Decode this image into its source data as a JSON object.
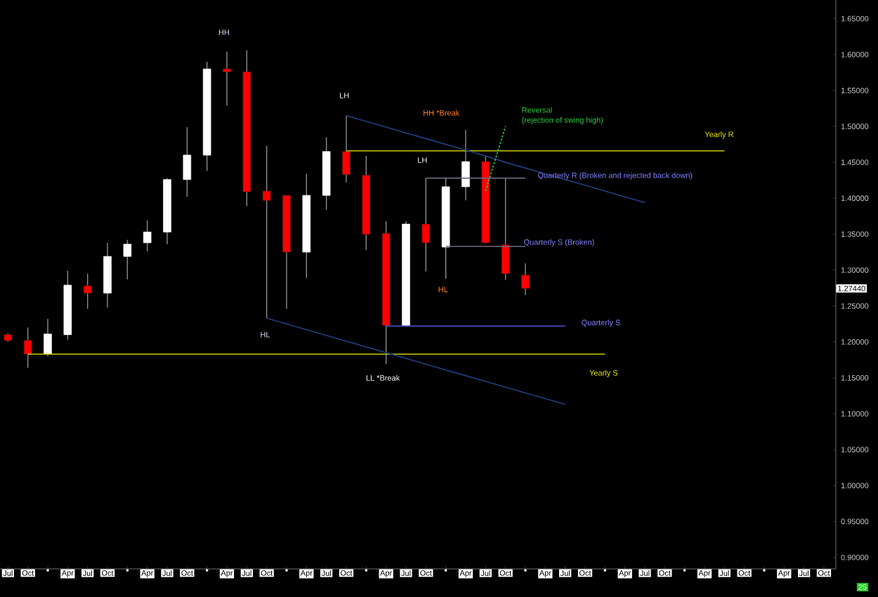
{
  "chart_data": {
    "type": "candlestick",
    "categories": [
      "Jul",
      "Oct",
      null,
      "Apr",
      "Jul",
      "Oct",
      null,
      "Apr",
      "Jul",
      "Oct",
      null,
      "Apr",
      "Jul",
      "Oct",
      null,
      "Apr",
      "Jul",
      "Oct",
      null,
      "Apr",
      "Jul",
      "Oct",
      null,
      "Apr",
      "Jul",
      "Oct",
      null,
      "Apr",
      "Jul",
      "Oct",
      null,
      "Apr",
      "Jul",
      "Oct",
      null,
      "Apr",
      "Jul",
      "Oct",
      null,
      "Apr",
      "Jul",
      "Oct"
    ],
    "ohlc": [
      [
        1.21,
        1.212,
        1.2,
        1.202
      ],
      [
        1.202,
        1.22,
        1.164,
        1.183
      ],
      [
        1.183,
        1.232,
        1.18,
        1.211
      ],
      [
        1.21,
        1.299,
        1.203,
        1.279
      ],
      [
        1.278,
        1.295,
        1.246,
        1.268
      ],
      [
        1.268,
        1.338,
        1.248,
        1.319
      ],
      [
        1.319,
        1.342,
        1.287,
        1.336
      ],
      [
        1.338,
        1.369,
        1.326,
        1.353
      ],
      [
        1.353,
        1.428,
        1.336,
        1.426
      ],
      [
        1.426,
        1.499,
        1.402,
        1.46
      ],
      [
        1.46,
        1.59,
        1.438,
        1.58
      ],
      [
        1.58,
        1.604,
        1.529,
        1.576
      ],
      [
        1.576,
        1.606,
        1.389,
        1.409
      ],
      [
        1.41,
        1.473,
        1.233,
        1.397
      ],
      [
        1.404,
        1.404,
        1.246,
        1.325
      ],
      [
        1.325,
        1.434,
        1.289,
        1.404
      ],
      [
        1.404,
        1.485,
        1.384,
        1.465
      ],
      [
        1.465,
        1.515,
        1.422,
        1.433
      ],
      [
        1.432,
        1.459,
        1.328,
        1.35
      ],
      [
        1.351,
        1.368,
        1.169,
        1.223
      ],
      [
        1.223,
        1.368,
        1.221,
        1.364
      ],
      [
        1.364,
        1.428,
        1.298,
        1.338
      ],
      [
        1.332,
        1.428,
        1.288,
        1.416
      ],
      [
        1.416,
        1.495,
        1.397,
        1.451
      ],
      [
        1.451,
        1.458,
        1.337,
        1.338
      ],
      [
        1.335,
        1.428,
        1.286,
        1.295
      ],
      [
        1.293,
        1.309,
        1.265,
        1.2744
      ],
      null,
      null,
      null,
      null,
      null,
      null,
      null,
      null,
      null,
      null,
      null,
      null,
      null,
      null,
      null
    ],
    "series": [
      {
        "type": "line",
        "color": "#c8c800",
        "values": [
          null,
          null,
          null,
          null,
          null,
          null,
          null,
          null,
          null,
          null,
          null,
          null,
          null,
          null,
          null,
          null,
          null,
          1.466,
          1.466,
          1.466,
          1.466,
          1.466,
          1.466,
          1.466,
          1.466,
          1.466,
          1.466,
          1.466,
          1.466,
          1.466,
          1.466,
          1.466,
          1.466,
          1.466,
          1.466,
          1.466,
          1.466,
          null,
          null,
          null,
          null,
          null
        ]
      },
      {
        "type": "line",
        "color": "#c8c800",
        "values": [
          null,
          1.183,
          1.183,
          1.183,
          1.183,
          1.183,
          1.183,
          1.183,
          1.183,
          1.183,
          1.183,
          1.183,
          1.183,
          1.183,
          1.183,
          1.183,
          1.183,
          1.183,
          1.183,
          1.183,
          1.183,
          1.183,
          1.183,
          1.183,
          1.183,
          1.183,
          1.183,
          1.183,
          1.183,
          1.183,
          1.183,
          null,
          null,
          null,
          null,
          null,
          null,
          null,
          null,
          null,
          null,
          null
        ]
      },
      {
        "type": "line",
        "color": "#6a6a80",
        "values": [
          null,
          null,
          null,
          null,
          null,
          null,
          null,
          null,
          null,
          null,
          null,
          null,
          null,
          null,
          null,
          null,
          null,
          null,
          null,
          null,
          null,
          1.428,
          1.428,
          1.428,
          1.428,
          1.428,
          1.428,
          null,
          null,
          null,
          null,
          null,
          null,
          null,
          null,
          null,
          null,
          null,
          null,
          null,
          null,
          null
        ]
      },
      {
        "type": "line",
        "color": "#6a6a80",
        "values": [
          null,
          null,
          null,
          null,
          null,
          null,
          null,
          null,
          null,
          null,
          null,
          null,
          null,
          null,
          null,
          null,
          null,
          null,
          null,
          null,
          null,
          null,
          1.333,
          1.333,
          1.333,
          1.333,
          1.333,
          null,
          null,
          null,
          null,
          null,
          null,
          null,
          null,
          null,
          null,
          null,
          null,
          null,
          null,
          null
        ]
      },
      {
        "type": "line",
        "color": "#5050d0",
        "values": [
          null,
          null,
          null,
          null,
          null,
          null,
          null,
          null,
          null,
          null,
          null,
          null,
          null,
          null,
          null,
          null,
          null,
          null,
          null,
          1.222,
          1.222,
          1.222,
          1.222,
          1.222,
          1.222,
          1.222,
          1.222,
          1.222,
          1.222,
          null,
          null,
          null,
          null,
          null,
          null,
          null,
          null,
          null,
          null,
          null,
          null,
          null
        ]
      },
      {
        "type": "line",
        "color": "#1f3f7f",
        "values": [
          null,
          null,
          null,
          null,
          null,
          null,
          null,
          null,
          null,
          null,
          null,
          null,
          null,
          null,
          null,
          null,
          null,
          1.515,
          1.507,
          1.499,
          1.491,
          1.483,
          1.475,
          1.467,
          1.459,
          1.45,
          1.442,
          1.434,
          1.426,
          1.418,
          1.41,
          1.402,
          1.394,
          null,
          null,
          null,
          null,
          null,
          null,
          null,
          null,
          null
        ]
      },
      {
        "type": "line",
        "color": "#2ecc40",
        "line_style": "dashed",
        "values": [
          null,
          null,
          null,
          null,
          null,
          null,
          null,
          null,
          null,
          null,
          null,
          null,
          null,
          null,
          null,
          null,
          null,
          null,
          null,
          null,
          null,
          null,
          null,
          null,
          1.41,
          1.5,
          null,
          null,
          null,
          null,
          null,
          null,
          null,
          null,
          null,
          null,
          null,
          null,
          null,
          null,
          null,
          null
        ]
      },
      {
        "type": "line",
        "color": "#1f3f7f",
        "values": [
          null,
          null,
          null,
          null,
          null,
          null,
          null,
          null,
          null,
          null,
          null,
          null,
          null,
          1.233,
          1.225,
          1.217,
          1.209,
          1.201,
          1.193,
          1.185,
          1.177,
          1.169,
          1.161,
          1.153,
          1.145,
          1.137,
          1.129,
          1.121,
          1.113,
          null,
          null,
          null,
          null,
          null,
          null,
          null,
          null,
          null,
          null,
          null,
          null,
          null
        ]
      }
    ],
    "ylim": [
      0.884,
      1.676
    ],
    "yticks": [
      {
        "value": 0.9,
        "label": "0.90000"
      },
      {
        "value": 0.95,
        "label": "0.95000"
      },
      {
        "value": 1.0,
        "label": "1.00000"
      },
      {
        "value": 1.05,
        "label": "1.05000"
      },
      {
        "value": 1.1,
        "label": "1.10000"
      },
      {
        "value": 1.15,
        "label": "1.15000"
      },
      {
        "value": 1.2,
        "label": "1.20000"
      },
      {
        "value": 1.25,
        "label": "1.25000"
      },
      {
        "value": 1.3,
        "label": "1.30000"
      },
      {
        "value": 1.35,
        "label": "1.35000"
      },
      {
        "value": 1.4,
        "label": "1.40000"
      },
      {
        "value": 1.45,
        "label": "1.45000"
      },
      {
        "value": 1.5,
        "label": "1.50000"
      },
      {
        "value": 1.55,
        "label": "1.55000"
      },
      {
        "value": 1.6,
        "label": "1.60000"
      },
      {
        "value": 1.65,
        "label": "1.65000"
      }
    ],
    "annotations": [
      "HH",
      "LH",
      "HH *Break",
      "LH",
      "HL",
      "HL",
      "LL *Break",
      "Reversal",
      "(rejection of swing high)",
      "Yearly R",
      "Quarterly R (Broken and rejected back down)",
      "Quarterly S (Broken)",
      "Quarterly S",
      "Yearly S",
      "1.27440",
      "25"
    ]
  }
}
